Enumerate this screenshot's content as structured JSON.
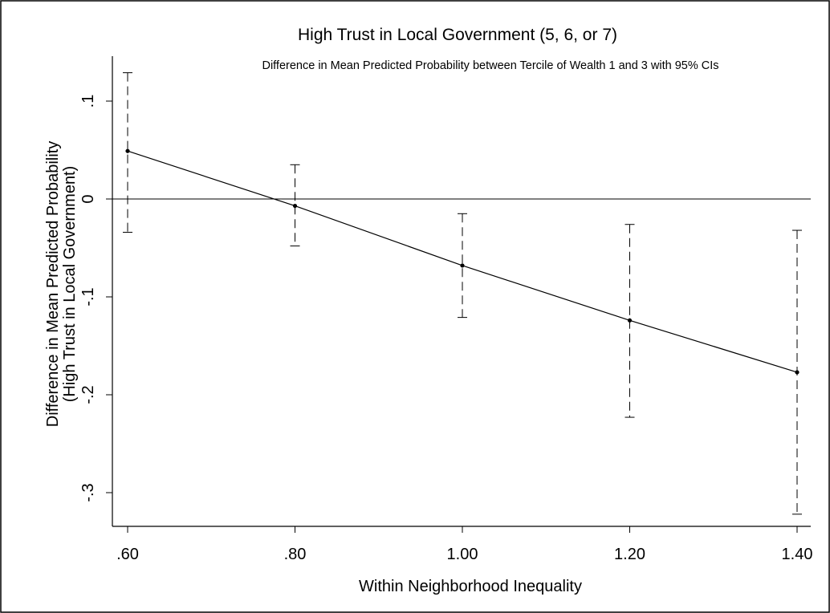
{
  "chart_data": {
    "type": "line",
    "title": "High Trust in Local Government (5, 6, or 7)",
    "subtitle": "Difference in Mean Predicted Probability between Tercile of Wealth 1 and 3  with 95% CIs",
    "xlabel": "Within Neighborhood Inequality",
    "ylabel_line1": "Difference in Mean Predicted Probability",
    "ylabel_line2": "(High Trust in Local Government)",
    "x_ticks": [
      {
        "value": 0.6,
        "label": ".60"
      },
      {
        "value": 0.8,
        "label": ".80"
      },
      {
        "value": 1.0,
        "label": "1.00"
      },
      {
        "value": 1.2,
        "label": "1.20"
      },
      {
        "value": 1.4,
        "label": "1.40"
      }
    ],
    "y_ticks": [
      {
        "value": 0.1,
        "label": ".1"
      },
      {
        "value": 0,
        "label": "0"
      },
      {
        "value": -0.1,
        "label": "-.1"
      },
      {
        "value": -0.2,
        "label": "-.2"
      },
      {
        "value": -0.3,
        "label": "-.3"
      }
    ],
    "xlim": [
      0.6,
      1.4
    ],
    "ylim": [
      -0.335,
      0.14
    ],
    "reference_line_y": 0,
    "grid": false,
    "series": [
      {
        "x": [
          0.6,
          0.8,
          1.0,
          1.2,
          1.4
        ],
        "y": [
          0.049,
          -0.007,
          -0.068,
          -0.124,
          -0.177
        ],
        "ci_lower": [
          -0.034,
          -0.048,
          -0.121,
          -0.223,
          -0.322
        ],
        "ci_upper": [
          0.129,
          0.035,
          -0.015,
          -0.026,
          -0.032
        ]
      }
    ]
  }
}
